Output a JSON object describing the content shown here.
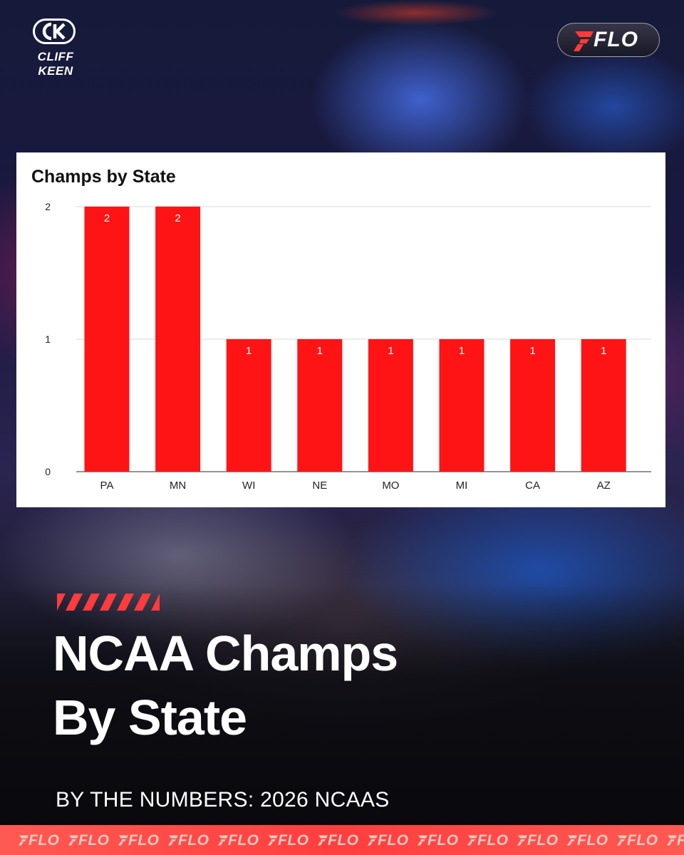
{
  "brand": {
    "cliff_keen_text": "CLIFF KEEN",
    "flo_text": "FLO"
  },
  "chart_data": {
    "type": "bar",
    "title": "Champs by State",
    "categories": [
      "PA",
      "MN",
      "WI",
      "NE",
      "MO",
      "MI",
      "CA",
      "AZ"
    ],
    "values": [
      2,
      2,
      1,
      1,
      1,
      1,
      1,
      1
    ],
    "data_labels": [
      "2",
      "2",
      "1",
      "1",
      "1",
      "1",
      "1",
      "1"
    ],
    "ylim": [
      0,
      2
    ],
    "yticks": [
      0,
      1,
      2
    ],
    "grid": true,
    "legend": "none",
    "bar_color": "#fe1414"
  },
  "headline": {
    "line1": "NCAA Champs",
    "line2": "By State"
  },
  "subheadline": "BY THE NUMBERS: 2026 NCAAS",
  "footer": {
    "repeat_text": "FLO"
  },
  "colors": {
    "accent_red": "#ff3b3b",
    "bar_red": "#fe1414",
    "footer_red": "#ff4a45"
  }
}
